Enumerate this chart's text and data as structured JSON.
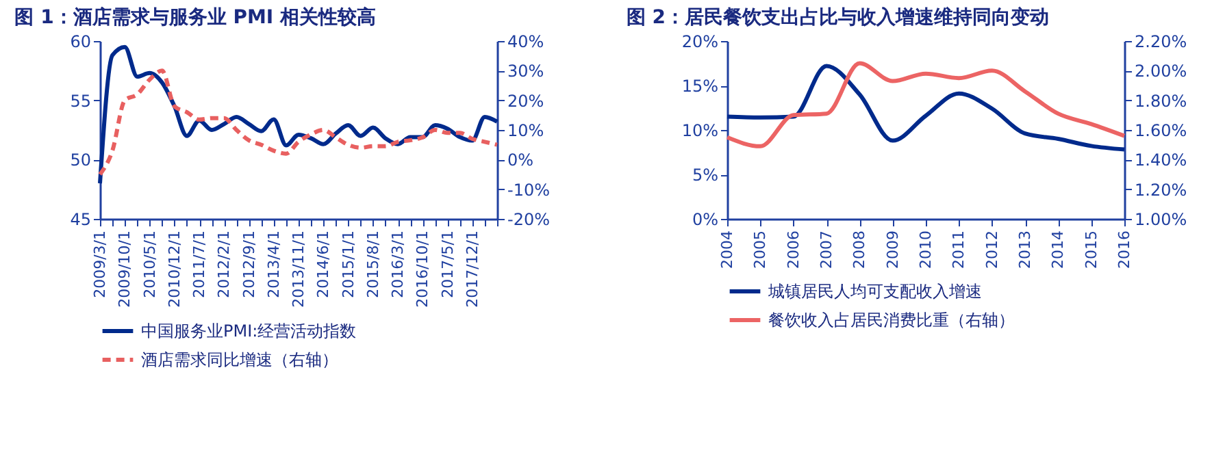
{
  "chart_data": [
    {
      "type": "line",
      "title": "图 1：酒店需求与服务业 PMI 相关性较高",
      "categories": [
        "2009/3/1",
        null,
        "2009/10/1",
        null,
        "2010/5/1",
        null,
        "2010/12/1",
        null,
        "2011/7/1",
        null,
        "2012/2/1",
        null,
        "2012/9/1",
        null,
        "2013/4/1",
        null,
        "2013/11/1",
        null,
        "2014/6/1",
        null,
        "2015/1/1",
        null,
        "2015/8/1",
        null,
        "2016/3/1",
        null,
        "2016/10/1",
        null,
        "2017/5/1",
        null,
        "2017/12/1",
        null,
        null
      ],
      "series": [
        {
          "name": "中国服务业PMI:经营活动指数",
          "color": "#002a8c",
          "line_style": "solid",
          "values": [
            48.0,
            58.8,
            59.5,
            57.0,
            57.3,
            56.5,
            54.5,
            52.0,
            53.3,
            52.5,
            53.0,
            53.6,
            53.0,
            52.4,
            53.4,
            51.2,
            52.1,
            51.8,
            51.3,
            52.2,
            52.9,
            52.0,
            52.7,
            51.8,
            51.3,
            51.9,
            51.9,
            52.9,
            52.6,
            51.9,
            51.6,
            53.6,
            53.2
          ]
        },
        {
          "name": "酒店需求同比增速（右轴）",
          "color": "#e86060",
          "line_style": "dashed",
          "axis": "y2",
          "values": [
            -5,
            3,
            20,
            22,
            27,
            30,
            18,
            16,
            13.5,
            14,
            14,
            10,
            6.5,
            5,
            3,
            2,
            6,
            8.5,
            10,
            7.5,
            5,
            4,
            4.5,
            4.5,
            6,
            6.5,
            7.5,
            10,
            9,
            9,
            7,
            6,
            5
          ]
        }
      ],
      "ylim": [
        45,
        60
      ],
      "yticks": [
        45,
        50,
        55,
        60
      ],
      "y2lim": [
        -20,
        40
      ],
      "y2ticks": [
        {
          "value": -20,
          "label": "-20%"
        },
        {
          "value": -10,
          "label": "-10%"
        },
        {
          "value": 0,
          "label": "0%"
        },
        {
          "value": 10,
          "label": "10%"
        },
        {
          "value": 20,
          "label": "20%"
        },
        {
          "value": 30,
          "label": "30%"
        },
        {
          "value": 40,
          "label": "40%"
        }
      ],
      "legend": "bottom",
      "grid": false,
      "marker": "none"
    },
    {
      "type": "line",
      "title": "图 2：居民餐饮支出占比与收入增速维持同向变动",
      "categories": [
        "2004",
        "2005",
        "2006",
        "2007",
        "2008",
        "2009",
        "2010",
        "2011",
        "2012",
        "2013",
        "2014",
        "2015",
        "2016"
      ],
      "series": [
        {
          "name": "城镇居民人均可支配收入增速",
          "color": "#002a8c",
          "line_style": "solid",
          "values": [
            11.5,
            11.4,
            11.5,
            17.2,
            14.0,
            8.8,
            11.6,
            14.1,
            12.4,
            9.6,
            9.0,
            8.2,
            7.8
          ]
        },
        {
          "name": "餐饮收入占居民消费比重（右轴）",
          "color": "#ec6464",
          "line_style": "solid",
          "axis": "y2",
          "values": [
            1.55,
            1.49,
            1.7,
            1.71,
            2.05,
            1.93,
            1.98,
            1.95,
            2.0,
            1.86,
            1.71,
            1.64,
            1.56
          ]
        }
      ],
      "ylim": [
        0,
        20
      ],
      "yticks": [
        {
          "value": 0,
          "label": "0%"
        },
        {
          "value": 5,
          "label": "5%"
        },
        {
          "value": 10,
          "label": "10%"
        },
        {
          "value": 15,
          "label": "15%"
        },
        {
          "value": 20,
          "label": "20%"
        }
      ],
      "y2lim": [
        1.0,
        2.2
      ],
      "y2ticks": [
        {
          "value": 1.0,
          "label": "1.00%"
        },
        {
          "value": 1.2,
          "label": "1.20%"
        },
        {
          "value": 1.4,
          "label": "1.40%"
        },
        {
          "value": 1.6,
          "label": "1.60%"
        },
        {
          "value": 1.8,
          "label": "1.80%"
        },
        {
          "value": 2.0,
          "label": "2.00%"
        },
        {
          "value": 2.2,
          "label": "2.20%"
        }
      ],
      "legend": "bottom",
      "grid": false,
      "marker": "none"
    }
  ]
}
